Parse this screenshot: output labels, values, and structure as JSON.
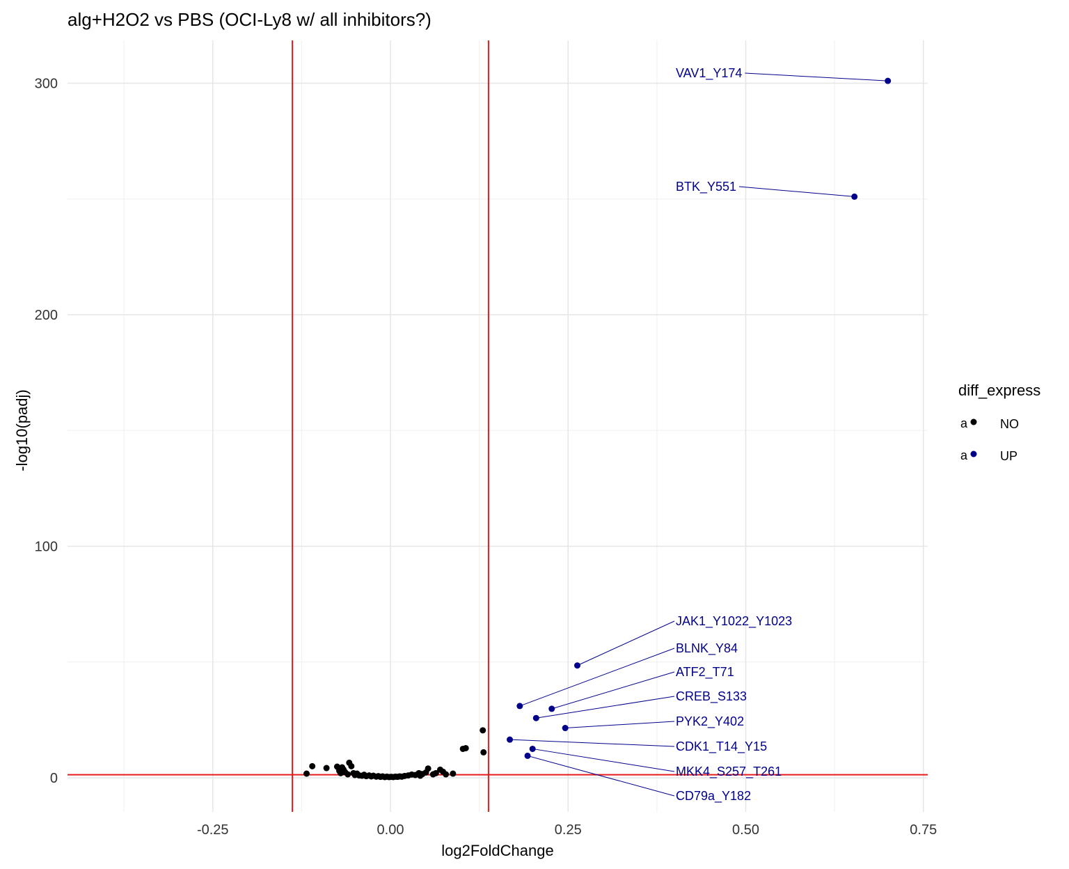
{
  "chart_data": {
    "type": "scatter",
    "title": "alg+H2O2 vs PBS (OCI-Ly8 w/ all inhibitors?)",
    "xlabel": "log2FoldChange",
    "ylabel": "-log10(padj)",
    "xlim": [
      -0.45,
      0.76
    ],
    "ylim": [
      -16,
      318
    ],
    "x_ticks": [
      -0.25,
      0.0,
      0.25,
      0.5,
      0.75
    ],
    "x_tick_labels": [
      "-0.25",
      "0.00",
      "0.25",
      "0.50",
      "0.75"
    ],
    "y_ticks": [
      0,
      100,
      200,
      300
    ],
    "y_tick_labels": [
      "0",
      "100",
      "200",
      "300"
    ],
    "grid": true,
    "vlines": [
      -0.138,
      0.138
    ],
    "hlines": [
      1.3
    ],
    "reference_line_color": "#e41a1c",
    "legend": {
      "title": "diff_express",
      "position": "right",
      "key_glyph": "a",
      "entries": [
        {
          "name": "NO",
          "color": "#000000"
        },
        {
          "name": "UP",
          "color": "#00008b"
        }
      ]
    },
    "series": [
      {
        "name": "NO",
        "color": "#000000",
        "points": [
          [
            -0.118,
            1.8
          ],
          [
            -0.11,
            5.0
          ],
          [
            -0.09,
            4.2
          ],
          [
            -0.075,
            4.8
          ],
          [
            -0.072,
            3.0
          ],
          [
            -0.07,
            2.0
          ],
          [
            -0.068,
            4.5
          ],
          [
            -0.066,
            3.5
          ],
          [
            -0.064,
            2.5
          ],
          [
            -0.06,
            1.5
          ],
          [
            -0.058,
            6.5
          ],
          [
            -0.055,
            5.0
          ],
          [
            -0.052,
            2.0
          ],
          [
            -0.05,
            1.2
          ],
          [
            -0.047,
            1.8
          ],
          [
            -0.044,
            1.0
          ],
          [
            -0.04,
            0.9
          ],
          [
            -0.037,
            1.3
          ],
          [
            -0.034,
            0.7
          ],
          [
            -0.03,
            1.0
          ],
          [
            -0.027,
            0.6
          ],
          [
            -0.024,
            0.9
          ],
          [
            -0.02,
            0.5
          ],
          [
            -0.017,
            0.7
          ],
          [
            -0.014,
            0.4
          ],
          [
            -0.011,
            0.6
          ],
          [
            -0.008,
            0.3
          ],
          [
            -0.005,
            0.5
          ],
          [
            -0.002,
            0.3
          ],
          [
            0.001,
            0.4
          ],
          [
            0.004,
            0.3
          ],
          [
            0.007,
            0.5
          ],
          [
            0.01,
            0.4
          ],
          [
            0.013,
            0.6
          ],
          [
            0.016,
            0.5
          ],
          [
            0.02,
            0.8
          ],
          [
            0.025,
            1.0
          ],
          [
            0.03,
            1.4
          ],
          [
            0.035,
            1.2
          ],
          [
            0.04,
            2.0
          ],
          [
            0.042,
            0.9
          ],
          [
            0.045,
            1.6
          ],
          [
            0.05,
            2.3
          ],
          [
            0.053,
            4.0
          ],
          [
            0.06,
            1.5
          ],
          [
            0.064,
            2.0
          ],
          [
            0.07,
            3.5
          ],
          [
            0.074,
            2.6
          ],
          [
            0.078,
            1.5
          ],
          [
            0.088,
            1.8
          ],
          [
            0.102,
            12.5
          ],
          [
            0.106,
            12.8
          ],
          [
            0.13,
            20.5
          ],
          [
            0.131,
            11.0
          ]
        ]
      },
      {
        "name": "UP",
        "color": "#00008b",
        "points": [
          {
            "x": 0.7,
            "y": 301,
            "label": "VAV1_Y174"
          },
          {
            "x": 0.653,
            "y": 251,
            "label": "BTK_Y551"
          },
          {
            "x": 0.263,
            "y": 48.5,
            "label": "JAK1_Y1022_Y1023"
          },
          {
            "x": 0.182,
            "y": 31,
            "label": "BLNK_Y84"
          },
          {
            "x": 0.227,
            "y": 29.8,
            "label": "ATF2_T71"
          },
          {
            "x": 0.205,
            "y": 25.8,
            "label": "CREB_S133"
          },
          {
            "x": 0.246,
            "y": 21.5,
            "label": "PYK2_Y402"
          },
          {
            "x": 0.168,
            "y": 16.5,
            "label": "CDK1_T14_Y15"
          },
          {
            "x": 0.2,
            "y": 12.5,
            "label": "MKK4_S257_T261"
          },
          {
            "x": 0.193,
            "y": 9.5,
            "label": "CD79a_Y182"
          }
        ]
      }
    ]
  }
}
